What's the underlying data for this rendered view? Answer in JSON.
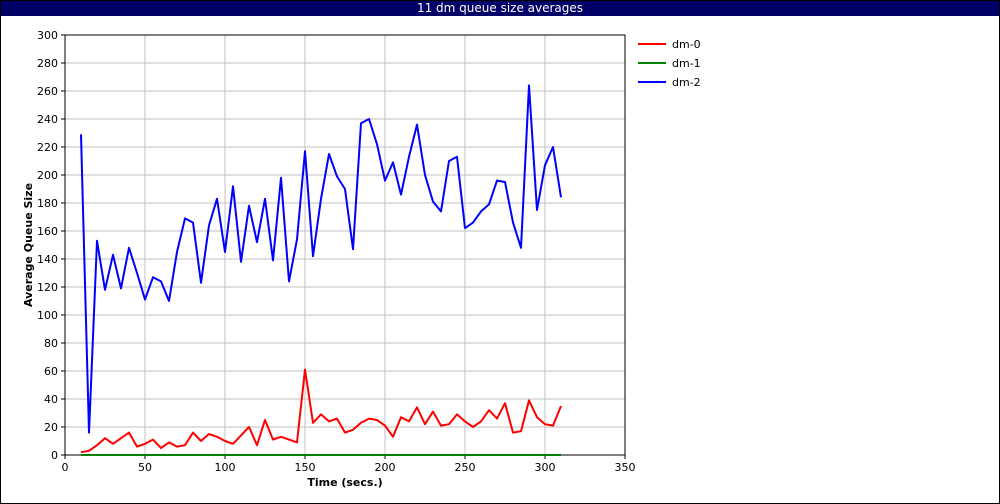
{
  "chart_data": {
    "type": "line",
    "title": "11 dm queue size averages",
    "xlabel": "Time (secs.)",
    "ylabel": "Average Queue Size",
    "xlim": [
      0,
      350
    ],
    "ylim": [
      0,
      300
    ],
    "xticks": [
      0,
      50,
      100,
      150,
      200,
      250,
      300,
      350
    ],
    "yticks": [
      0,
      20,
      40,
      60,
      80,
      100,
      120,
      140,
      160,
      180,
      200,
      220,
      240,
      260,
      280,
      300
    ],
    "grid": true,
    "legend_position": "top-right",
    "series": [
      {
        "name": "dm-0",
        "color": "#ff0000",
        "x": [
          10,
          15,
          20,
          25,
          30,
          35,
          40,
          45,
          50,
          55,
          60,
          65,
          70,
          75,
          80,
          85,
          90,
          95,
          100,
          105,
          110,
          115,
          120,
          125,
          130,
          135,
          140,
          145,
          150,
          155,
          160,
          165,
          170,
          175,
          180,
          185,
          190,
          195,
          200,
          205,
          210,
          215,
          220,
          225,
          230,
          235,
          240,
          245,
          250,
          255,
          260,
          265,
          270,
          275,
          280,
          285,
          290,
          295,
          300,
          305,
          310
        ],
        "y": [
          2,
          3,
          7,
          12,
          8,
          12,
          16,
          6,
          8,
          11,
          5,
          9,
          6,
          7,
          16,
          10,
          15,
          13,
          10,
          8,
          14,
          20,
          7,
          25,
          11,
          13,
          11,
          9,
          61,
          23,
          29,
          24,
          26,
          16,
          18,
          23,
          26,
          25,
          21,
          13,
          27,
          24,
          34,
          22,
          31,
          21,
          22,
          29,
          24,
          20,
          24,
          32,
          26,
          37,
          16,
          17,
          39,
          27,
          22,
          21,
          35
        ]
      },
      {
        "name": "dm-1",
        "color": "#008000",
        "x": [
          10,
          310
        ],
        "y": [
          0,
          0
        ]
      },
      {
        "name": "dm-2",
        "color": "#0000ff",
        "x": [
          10,
          15,
          20,
          25,
          30,
          35,
          40,
          45,
          50,
          55,
          60,
          65,
          70,
          75,
          80,
          85,
          90,
          95,
          100,
          105,
          110,
          115,
          120,
          125,
          130,
          135,
          140,
          145,
          150,
          155,
          160,
          165,
          170,
          175,
          180,
          185,
          190,
          195,
          200,
          205,
          210,
          215,
          220,
          225,
          230,
          235,
          240,
          245,
          250,
          255,
          260,
          265,
          270,
          275,
          280,
          285,
          290,
          295,
          300,
          305,
          310
        ],
        "y": [
          229,
          16,
          153,
          118,
          143,
          119,
          148,
          130,
          111,
          127,
          124,
          110,
          145,
          169,
          166,
          123,
          164,
          183,
          145,
          192,
          138,
          178,
          152,
          183,
          139,
          198,
          124,
          154,
          217,
          142,
          183,
          215,
          199,
          190,
          147,
          237,
          240,
          222,
          196,
          209,
          186,
          213,
          236,
          200,
          181,
          174,
          210,
          213,
          162,
          166,
          174,
          179,
          196,
          195,
          166,
          148,
          264,
          175,
          207,
          220,
          184
        ]
      }
    ]
  }
}
